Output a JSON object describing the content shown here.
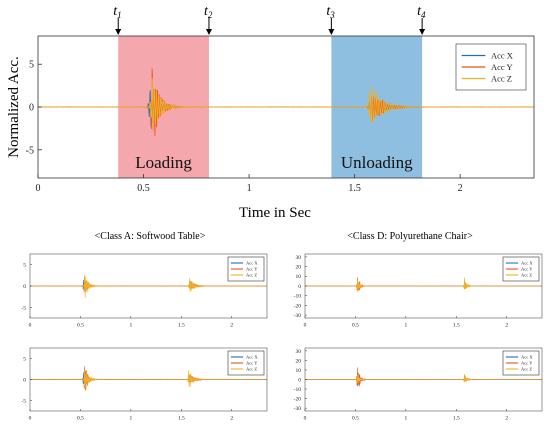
{
  "colors": {
    "acc_x": "#1f6fb4",
    "acc_y": "#e8541e",
    "acc_z": "#f0b024",
    "loading_region": "#f4a7ac",
    "unloading_region": "#8fbfe0"
  },
  "chart_data": [
    {
      "type": "line",
      "ylabel": "Normalized Acc.",
      "xlabel": "Time in Sec",
      "xlim": [
        0,
        2.35
      ],
      "ylim": [
        -8.3,
        8.3
      ],
      "xticks": [
        0,
        0.5,
        1,
        1.5,
        2
      ],
      "xtick_labels": [
        "0",
        "0.5",
        "1",
        "1.5",
        "2"
      ],
      "yticks": [
        -5,
        0,
        5
      ],
      "ytick_labels": [
        "-5",
        "0",
        "5"
      ],
      "legend": {
        "position": "top-right",
        "entries": [
          "Acc X",
          "Acc Y",
          "Acc Z"
        ]
      },
      "markers": [
        {
          "label": "t",
          "subscript": "1",
          "x": 0.38
        },
        {
          "label": "t",
          "subscript": "2",
          "x": 0.81
        },
        {
          "label": "t",
          "subscript": "3",
          "x": 1.39
        },
        {
          "label": "t",
          "subscript": "4",
          "x": 1.82
        }
      ],
      "regions": [
        {
          "label": "Loading",
          "x": [
            0.38,
            0.81
          ]
        },
        {
          "label": "Unloading",
          "x": [
            1.39,
            1.82
          ]
        }
      ],
      "series": [
        {
          "name": "Acc X",
          "bursts": [
            {
              "t": 0.53,
              "amp": 3.0,
              "decay": 0.03,
              "freq": 110
            },
            {
              "t": 1.57,
              "amp": 1.6,
              "decay": 0.05,
              "freq": 95
            }
          ]
        },
        {
          "name": "Acc Y",
          "bursts": [
            {
              "t": 0.54,
              "amp": 5.6,
              "decay": 0.03,
              "freq": 120
            },
            {
              "t": 1.58,
              "amp": 2.4,
              "decay": 0.05,
              "freq": 100
            }
          ]
        },
        {
          "name": "Acc Z",
          "bursts": [
            {
              "t": 0.54,
              "amp": 4.4,
              "decay": 0.035,
              "freq": 100
            },
            {
              "t": 1.57,
              "amp": 3.2,
              "decay": 0.055,
              "freq": 90
            }
          ]
        }
      ]
    },
    {
      "type": "line",
      "title": "<Class A: Softwood Table>",
      "xlim": [
        0,
        2.35
      ],
      "ylim": [
        -7.5,
        7.5
      ],
      "xticks": [
        0,
        0.5,
        1,
        1.5,
        2
      ],
      "xtick_labels": [
        "0",
        "0.5",
        "1",
        "1.5",
        "2"
      ],
      "yticks": [
        -5,
        0,
        5
      ],
      "ytick_labels": [
        "-5",
        "0",
        "5"
      ],
      "legend": {
        "position": "top-right",
        "entries": [
          "Acc X",
          "Acc Y",
          "Acc Z"
        ]
      },
      "series": [
        {
          "name": "Acc X",
          "bursts": [
            {
              "t": 0.53,
              "amp": 2.2,
              "decay": 0.03,
              "freq": 110
            },
            {
              "t": 1.58,
              "amp": 1.2,
              "decay": 0.04,
              "freq": 95
            }
          ]
        },
        {
          "name": "Acc Y",
          "bursts": [
            {
              "t": 0.54,
              "amp": 3.2,
              "decay": 0.03,
              "freq": 120
            },
            {
              "t": 1.59,
              "amp": 1.8,
              "decay": 0.04,
              "freq": 100
            }
          ]
        },
        {
          "name": "Acc Z",
          "bursts": [
            {
              "t": 0.54,
              "amp": 3.8,
              "decay": 0.035,
              "freq": 100
            },
            {
              "t": 1.58,
              "amp": 2.4,
              "decay": 0.045,
              "freq": 90
            }
          ]
        }
      ]
    },
    {
      "type": "line",
      "title": "<Class D: Polyurethane Chair>",
      "xlim": [
        0,
        2.35
      ],
      "ylim": [
        -33,
        33
      ],
      "xticks": [
        0,
        0.5,
        1,
        1.5,
        2
      ],
      "xtick_labels": [
        "0",
        "0.5",
        "1",
        "1.5",
        "2"
      ],
      "yticks": [
        -30,
        -20,
        -10,
        0,
        10,
        20,
        30
      ],
      "ytick_labels": [
        "-30",
        "-20",
        "-10",
        "0",
        "10",
        "20",
        "30"
      ],
      "legend": {
        "position": "top-right",
        "entries": [
          "Acc X",
          "Acc Y",
          "Acc Z"
        ]
      },
      "series": [
        {
          "name": "Acc X",
          "bursts": [
            {
              "t": 0.52,
              "amp": 8,
              "decay": 0.02,
              "freq": 120
            },
            {
              "t": 1.58,
              "amp": 4,
              "decay": 0.02,
              "freq": 110
            }
          ]
        },
        {
          "name": "Acc Y",
          "bursts": [
            {
              "t": 0.52,
              "amp": 16,
              "decay": 0.02,
              "freq": 130
            },
            {
              "t": 1.58,
              "amp": 7,
              "decay": 0.02,
              "freq": 110
            }
          ]
        },
        {
          "name": "Acc Z",
          "bursts": [
            {
              "t": 0.52,
              "amp": 12,
              "decay": 0.02,
              "freq": 110
            },
            {
              "t": 1.58,
              "amp": 10,
              "decay": 0.025,
              "freq": 100
            }
          ]
        }
      ]
    },
    {
      "type": "line",
      "xlim": [
        0,
        2.35
      ],
      "ylim": [
        -7.5,
        7.5
      ],
      "xticks": [
        0,
        0.5,
        1,
        1.5,
        2
      ],
      "xtick_labels": [
        "0",
        "0.5",
        "1",
        "1.5",
        "2"
      ],
      "yticks": [
        -5,
        0,
        5
      ],
      "ytick_labels": [
        "-5",
        "0",
        "5"
      ],
      "legend": {
        "position": "top-right",
        "entries": [
          "Acc X",
          "Acc Y",
          "Acc Z"
        ]
      },
      "series": [
        {
          "name": "Acc X",
          "bursts": [
            {
              "t": 0.53,
              "amp": 2.5,
              "decay": 0.03,
              "freq": 110
            },
            {
              "t": 1.57,
              "amp": 1.4,
              "decay": 0.045,
              "freq": 95
            }
          ]
        },
        {
          "name": "Acc Y",
          "bursts": [
            {
              "t": 0.54,
              "amp": 5.0,
              "decay": 0.03,
              "freq": 120
            },
            {
              "t": 1.58,
              "amp": 2.0,
              "decay": 0.045,
              "freq": 100
            }
          ]
        },
        {
          "name": "Acc Z",
          "bursts": [
            {
              "t": 0.54,
              "amp": 4.0,
              "decay": 0.035,
              "freq": 100
            },
            {
              "t": 1.57,
              "amp": 2.6,
              "decay": 0.05,
              "freq": 90
            }
          ]
        }
      ]
    },
    {
      "type": "line",
      "xlim": [
        0,
        2.35
      ],
      "ylim": [
        -33,
        33
      ],
      "xticks": [
        0,
        0.5,
        1,
        1.5,
        2
      ],
      "xtick_labels": [
        "0",
        "0.5",
        "1",
        "1.5",
        "2"
      ],
      "yticks": [
        -30,
        -20,
        -10,
        0,
        10,
        20,
        30
      ],
      "ytick_labels": [
        "-30",
        "-20",
        "-10",
        "0",
        "10",
        "20",
        "30"
      ],
      "legend": {
        "position": "top-right",
        "entries": [
          "Acc X",
          "Acc Y",
          "Acc Z"
        ]
      },
      "series": [
        {
          "name": "Acc X",
          "bursts": [
            {
              "t": 0.52,
              "amp": 14,
              "decay": 0.02,
              "freq": 120
            },
            {
              "t": 1.58,
              "amp": 4,
              "decay": 0.02,
              "freq": 110
            }
          ]
        },
        {
          "name": "Acc Y",
          "bursts": [
            {
              "t": 0.52,
              "amp": 24,
              "decay": 0.02,
              "freq": 130
            },
            {
              "t": 1.58,
              "amp": 6,
              "decay": 0.02,
              "freq": 110
            }
          ]
        },
        {
          "name": "Acc Z",
          "bursts": [
            {
              "t": 0.52,
              "amp": 11,
              "decay": 0.02,
              "freq": 110
            },
            {
              "t": 1.58,
              "amp": 7,
              "decay": 0.025,
              "freq": 100
            }
          ]
        }
      ]
    }
  ]
}
